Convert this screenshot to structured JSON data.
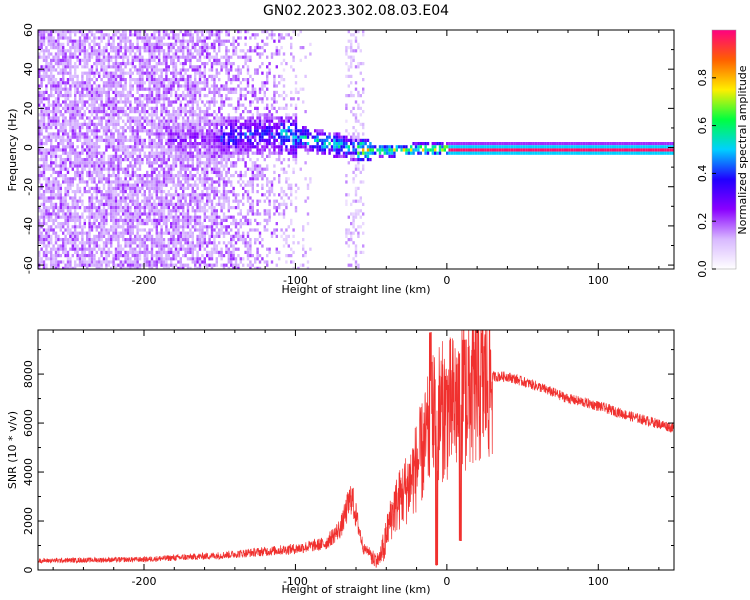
{
  "figure": {
    "title": "GN02.2023.302.08.03.E04"
  },
  "chart_data": [
    {
      "type": "heatmap",
      "xlabel": "Height of straight line (km)",
      "ylabel": "Frequency (Hz)",
      "xlim": [
        -270,
        150
      ],
      "ylim": [
        -62,
        60
      ],
      "x_ticks": [
        -200,
        -100,
        0,
        100
      ],
      "x_tick_labels": [
        "-200",
        "-100",
        "0",
        "100"
      ],
      "y_ticks": [
        -60,
        -40,
        -20,
        0,
        20,
        40,
        60
      ],
      "y_tick_labels": [
        "-60",
        "-40",
        "-20",
        "0",
        "20",
        "40",
        "60"
      ],
      "colorbar": {
        "label": "Normalized spectral amplitude",
        "range": [
          0,
          1
        ],
        "ticks": [
          0.0,
          0.2,
          0.4,
          0.6,
          0.8
        ],
        "tick_labels": [
          "0.0",
          "0.2",
          "0.4",
          "0.6",
          "0.8"
        ],
        "colors": [
          "#ffffff",
          "#d8b8ff",
          "#8a00ff",
          "#2000ff",
          "#00d0ff",
          "#00ff40",
          "#ffee00",
          "#ff6000",
          "#ff0080"
        ]
      },
      "ridge": {
        "description_points_x": [
          -180,
          -150,
          -120,
          -100,
          -80,
          -60,
          -40,
          -20,
          0,
          150
        ],
        "description_points_y": [
          5,
          6,
          8,
          6,
          3,
          0,
          -1,
          0,
          0,
          0
        ]
      },
      "grid": false
    },
    {
      "type": "line",
      "xlabel": "Height of straight line (km)",
      "ylabel": "SNR (10 * v/v)",
      "xlim": [
        -270,
        150
      ],
      "ylim": [
        0,
        9800
      ],
      "x_ticks": [
        -200,
        -100,
        0,
        100
      ],
      "x_tick_labels": [
        "-200",
        "-100",
        "0",
        "100"
      ],
      "y_ticks": [
        0,
        2000,
        4000,
        6000,
        8000
      ],
      "y_tick_labels": [
        "0",
        "2000",
        "4000",
        "6000",
        "8000"
      ],
      "color": "#f0302e",
      "envelope_x": [
        -270,
        -200,
        -150,
        -120,
        -100,
        -80,
        -70,
        -63,
        -55,
        -45,
        -35,
        -25,
        -15,
        -10,
        -5,
        0,
        10,
        20,
        30,
        40,
        60,
        80,
        100,
        120,
        150
      ],
      "envelope_y": [
        350,
        400,
        550,
        700,
        800,
        1000,
        1600,
        2800,
        800,
        500,
        2500,
        3500,
        5000,
        6000,
        6500,
        6500,
        7000,
        7500,
        7900,
        7900,
        7500,
        7000,
        6700,
        6300,
        5800
      ],
      "grid": false
    }
  ]
}
